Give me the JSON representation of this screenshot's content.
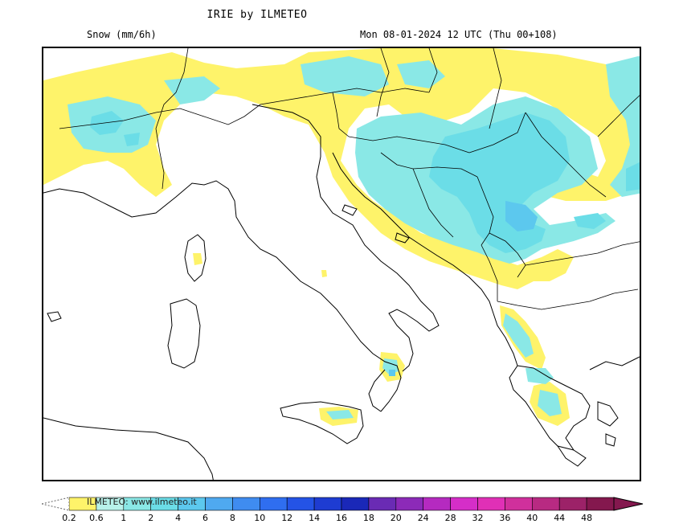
{
  "header": {
    "title": "IRIE by ILMETEO",
    "field": "Snow (mm/6h)",
    "valid_time": "Mon 08-01-2024 12 UTC (Thu 00+108)"
  },
  "legend": {
    "credit": "ILMETEO: www.ilmeteo.it",
    "ticks": [
      "0.2",
      "0.6",
      "1",
      "2",
      "4",
      "6",
      "8",
      "10",
      "12",
      "14",
      "16",
      "18",
      "20",
      "24",
      "28",
      "32",
      "36",
      "40",
      "44",
      "48"
    ],
    "colors": [
      "#fef36a",
      "#b8f2ea",
      "#8ae8e6",
      "#6bdde7",
      "#5cc8ee",
      "#4fa9f0",
      "#3f8cf0",
      "#2f6ef0",
      "#2453e6",
      "#1e3cd2",
      "#1a28b8",
      "#6a2bb4",
      "#8c2ab8",
      "#b52ac0",
      "#d52ec8",
      "#e030b6",
      "#d0309c",
      "#b82a82",
      "#9c2268",
      "#84184e"
    ],
    "palette": {
      "light": "#fef36a",
      "cyan": "#8ae8e6",
      "mid": "#6bdde7",
      "blue": "#5cc8ee"
    }
  }
}
